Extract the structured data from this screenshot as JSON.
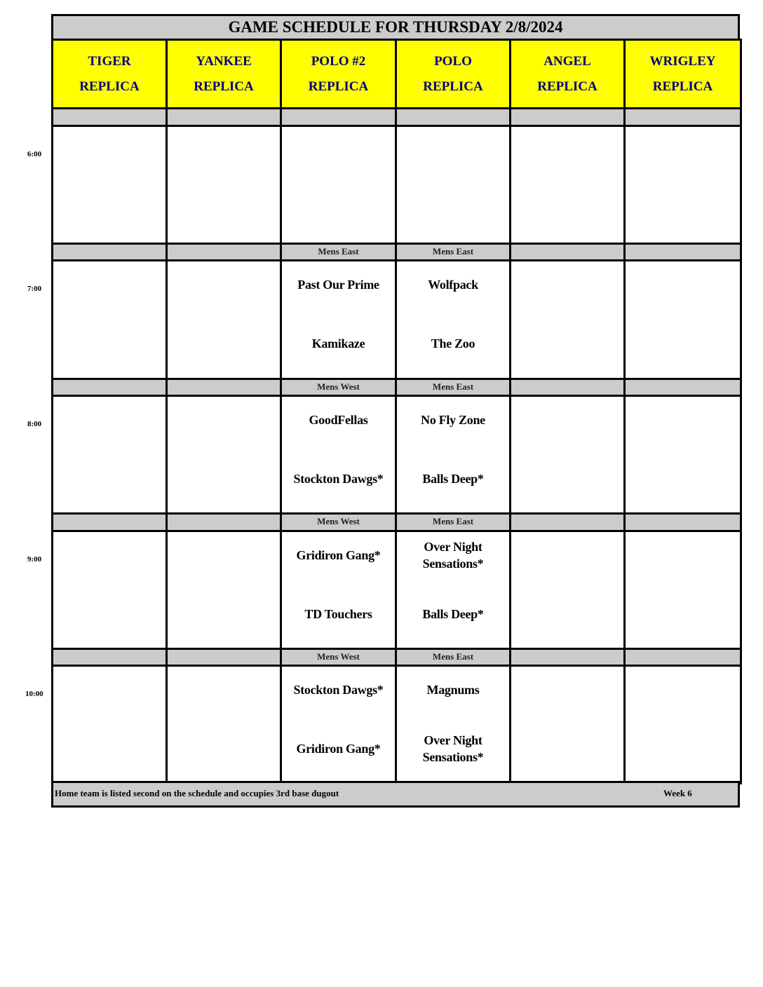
{
  "title": "GAME SCHEDULE FOR THURSDAY 2/8/2024",
  "fields": [
    {
      "line1": "TIGER",
      "line2": "REPLICA"
    },
    {
      "line1": "YANKEE",
      "line2": "REPLICA"
    },
    {
      "line1": "POLO #2",
      "line2": "REPLICA"
    },
    {
      "line1": "POLO",
      "line2": "REPLICA"
    },
    {
      "line1": "ANGEL",
      "line2": "REPLICA"
    },
    {
      "line1": "WRIGLEY",
      "line2": "REPLICA"
    }
  ],
  "slots": [
    {
      "time": "6:00",
      "bands": [
        "",
        "",
        "",
        "",
        "",
        ""
      ],
      "games": [
        [],
        [],
        [],
        [],
        [],
        []
      ]
    },
    {
      "time": "7:00",
      "bands": [
        "",
        "",
        "Mens East",
        "Mens East",
        "",
        ""
      ],
      "games": [
        [],
        [],
        [
          "Past Our Prime",
          "Kamikaze"
        ],
        [
          "Wolfpack",
          "The Zoo"
        ],
        [],
        []
      ]
    },
    {
      "time": "8:00",
      "bands": [
        "",
        "",
        "Mens West",
        "Mens East",
        "",
        ""
      ],
      "games": [
        [],
        [],
        [
          "GoodFellas",
          "Stockton Dawgs*"
        ],
        [
          "No Fly Zone",
          "Balls Deep*"
        ],
        [],
        []
      ]
    },
    {
      "time": "9:00",
      "bands": [
        "",
        "",
        "Mens West",
        "Mens East",
        "",
        ""
      ],
      "games": [
        [],
        [],
        [
          "Gridiron Gang*",
          "TD Touchers"
        ],
        [
          "Over Night Sensations*",
          "Balls Deep*"
        ],
        [],
        []
      ]
    },
    {
      "time": "10:00",
      "bands": [
        "",
        "",
        "Mens West",
        "Mens East",
        "",
        ""
      ],
      "games": [
        [],
        [],
        [
          "Stockton Dawgs*",
          "Gridiron Gang*"
        ],
        [
          "Magnums",
          "Over Night Sensations*"
        ],
        [],
        []
      ]
    }
  ],
  "footer": {
    "note": "Home team is listed second on the schedule and occupies 3rd base dugout",
    "week": "Week 6"
  },
  "colors": {
    "header_bg": "#ffff00",
    "header_text": "#000080",
    "band_bg": "#cccccc"
  }
}
